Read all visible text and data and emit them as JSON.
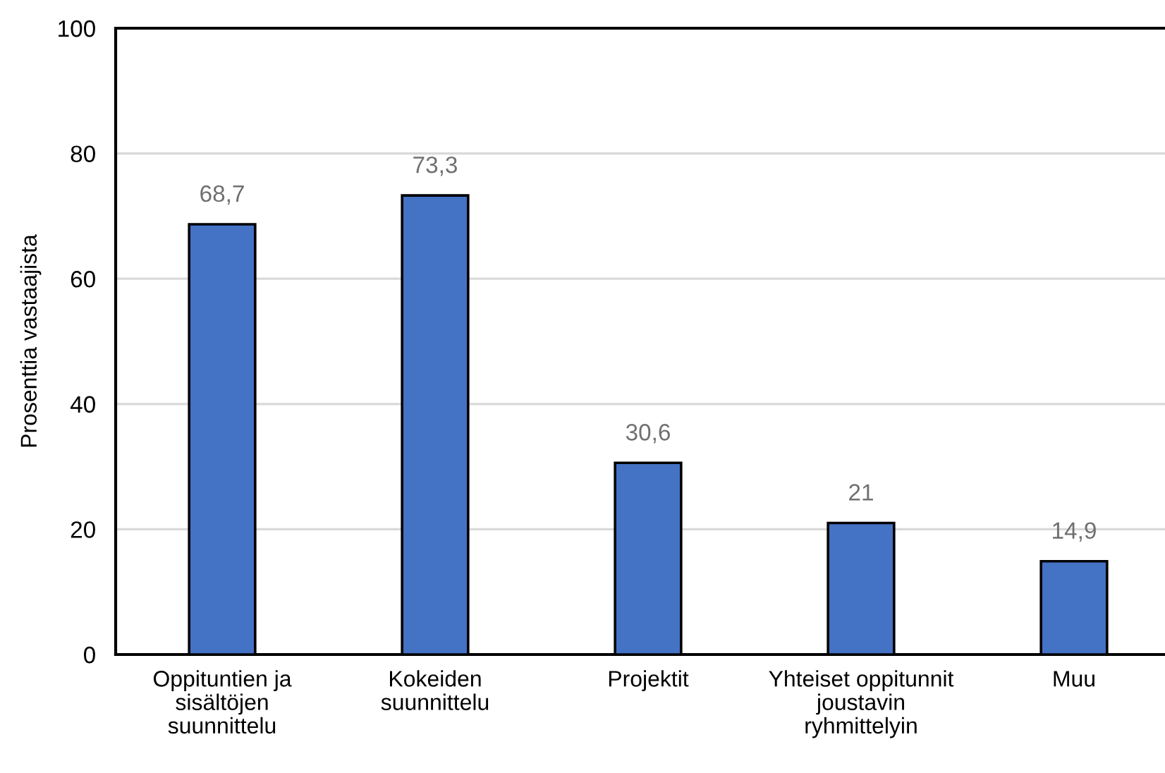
{
  "chart_data": {
    "type": "bar",
    "ylabel": "Prosenttia vastaajista",
    "categories": [
      "Oppituntien ja\nsisältöjen\nsuunnittelu",
      "Kokeiden\nsuunnittelu",
      "Projektit",
      "Yhteiset oppitunnit\njoustavin\nryhmittelyin",
      "Muu"
    ],
    "values": [
      68.7,
      73.3,
      30.6,
      21,
      14.9
    ],
    "color": "#4472c4",
    "value_labels": [
      "68,7",
      "73,3",
      "30,6",
      "21",
      "14,9"
    ],
    "ylim": [
      0,
      100
    ],
    "yticks": [
      0,
      20,
      40,
      60,
      80,
      100
    ],
    "grid": "y",
    "legend": false
  }
}
